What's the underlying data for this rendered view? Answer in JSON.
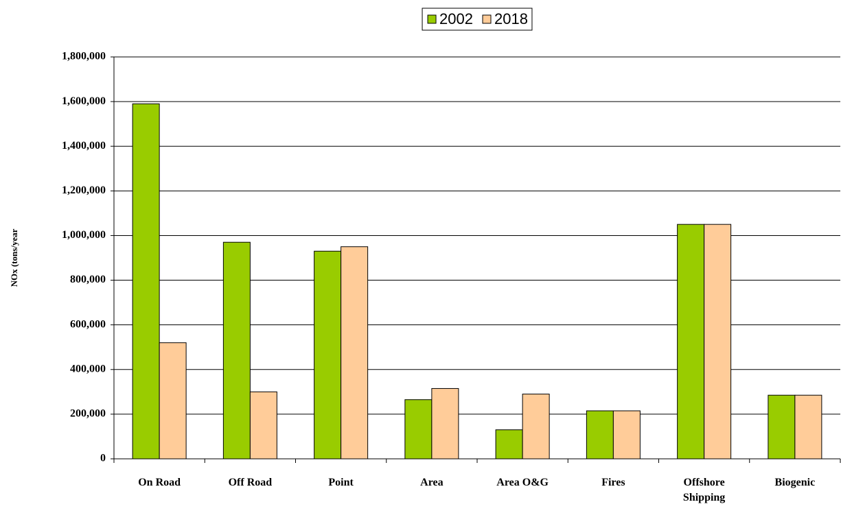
{
  "chart_data": {
    "type": "bar",
    "ylabel": "NOx (tons/year",
    "categories": [
      "On Road",
      "Off Road",
      "Point",
      "Area",
      "Area O&G",
      "Fires",
      "Offshore Shipping",
      "Biogenic"
    ],
    "series": [
      {
        "name": "2002",
        "color": "#99cc00",
        "values": [
          1590000,
          970000,
          930000,
          265000,
          130000,
          215000,
          1050000,
          285000
        ]
      },
      {
        "name": "2018",
        "color": "#ffcc99",
        "values": [
          520000,
          300000,
          950000,
          315000,
          290000,
          215000,
          1050000,
          285000
        ]
      }
    ],
    "ylim": [
      0,
      1800000
    ],
    "yticks": [
      0,
      {
        "value": 200000,
        "label": "200,000"
      },
      {
        "value": 400000,
        "label": "400,000"
      },
      {
        "value": 600000,
        "label": "600,000"
      },
      {
        "value": 800000,
        "label": "800,000"
      },
      {
        "value": 1000000,
        "label": "1,000,000"
      },
      {
        "value": 1200000,
        "label": "1,200,000"
      },
      {
        "value": 1400000,
        "label": "1,400,000"
      },
      {
        "value": 1600000,
        "label": "1,600,000"
      },
      {
        "value": 1800000,
        "label": "1,800,000"
      }
    ],
    "grid": true,
    "legend": "top"
  }
}
